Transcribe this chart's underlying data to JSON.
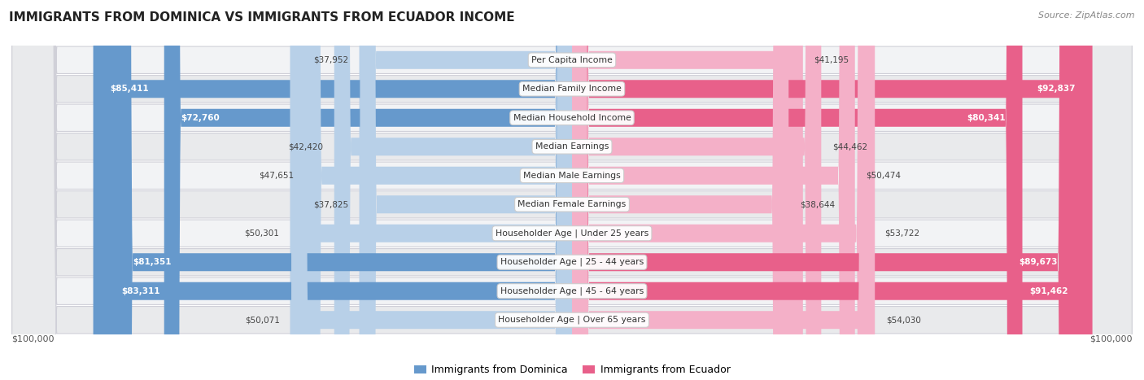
{
  "title": "IMMIGRANTS FROM DOMINICA VS IMMIGRANTS FROM ECUADOR INCOME",
  "source": "Source: ZipAtlas.com",
  "categories": [
    "Per Capita Income",
    "Median Family Income",
    "Median Household Income",
    "Median Earnings",
    "Median Male Earnings",
    "Median Female Earnings",
    "Householder Age | Under 25 years",
    "Householder Age | 25 - 44 years",
    "Householder Age | 45 - 64 years",
    "Householder Age | Over 65 years"
  ],
  "dominica_values": [
    37952,
    85411,
    72760,
    42420,
    47651,
    37825,
    50301,
    81351,
    83311,
    50071
  ],
  "ecuador_values": [
    41195,
    92837,
    80341,
    44462,
    50474,
    38644,
    53722,
    89673,
    91462,
    54030
  ],
  "dominica_labels": [
    "$37,952",
    "$85,411",
    "$72,760",
    "$42,420",
    "$47,651",
    "$37,825",
    "$50,301",
    "$81,351",
    "$83,311",
    "$50,071"
  ],
  "ecuador_labels": [
    "$41,195",
    "$92,837",
    "$80,341",
    "$44,462",
    "$50,474",
    "$38,644",
    "$53,722",
    "$89,673",
    "$91,462",
    "$54,030"
  ],
  "dominica_color_light": "#b8d0e8",
  "dominica_color_dark": "#6699cc",
  "ecuador_color_light": "#f4b0c8",
  "ecuador_color_dark": "#e8608a",
  "max_value": 100000,
  "background_color": "#ffffff",
  "row_bg_even": "#f0f2f5",
  "row_bg_odd": "#e8eaed",
  "legend_dominica": "Immigrants from Dominica",
  "legend_ecuador": "Immigrants from Ecuador",
  "label_threshold": 60000
}
